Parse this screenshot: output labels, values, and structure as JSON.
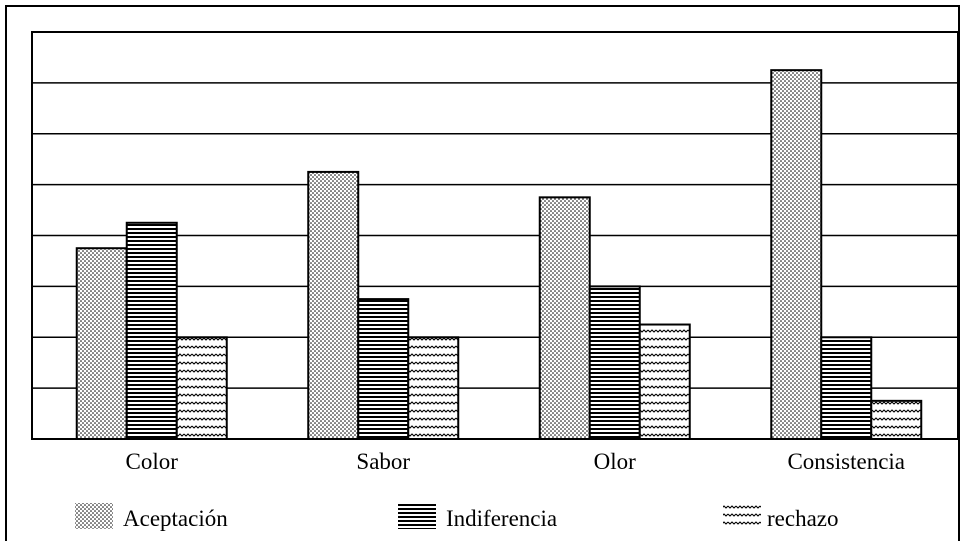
{
  "chart_data": {
    "type": "bar",
    "title": "",
    "xlabel": "",
    "ylabel": "",
    "categories": [
      "Color",
      "Sabor",
      "Olor",
      "Consistencia"
    ],
    "series": [
      {
        "name": "Aceptación",
        "pattern": "dots",
        "values": [
          3.75,
          5.25,
          4.75,
          7.25
        ]
      },
      {
        "name": "Indiferencia",
        "pattern": "horizontal-lines",
        "values": [
          4.25,
          2.75,
          3.0,
          2.0
        ]
      },
      {
        "name": "rechazo",
        "pattern": "zigzag",
        "values": [
          2.0,
          2.0,
          2.25,
          0.75
        ]
      }
    ],
    "ylim": [
      0,
      8
    ],
    "grid": true,
    "legend_position": "bottom",
    "colors": {
      "ink": "#000000",
      "background": "#ffffff"
    }
  }
}
